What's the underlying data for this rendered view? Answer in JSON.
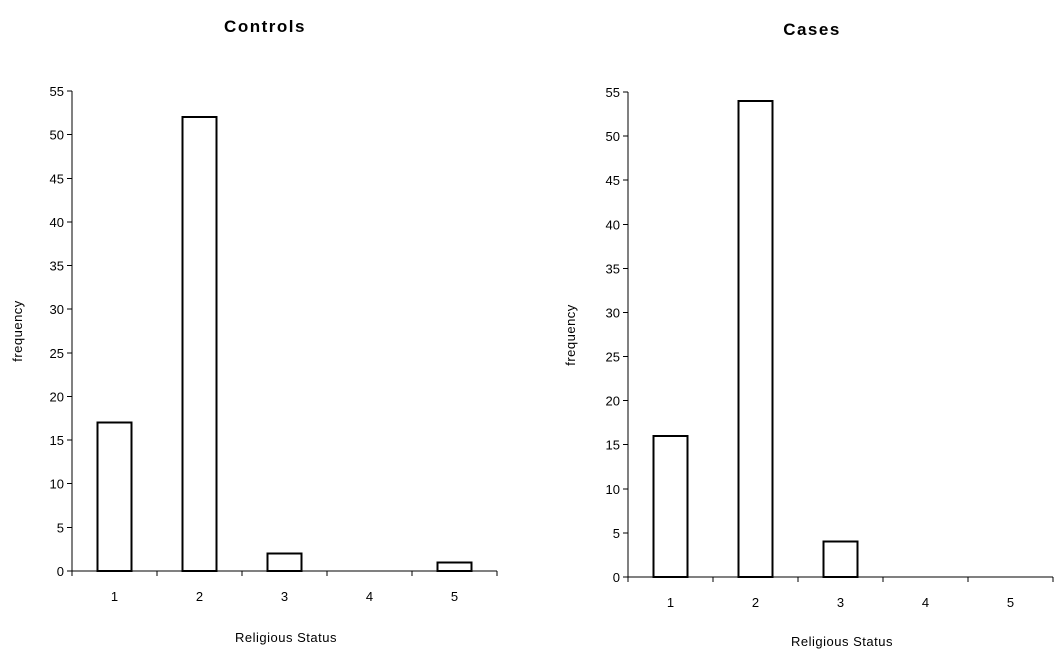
{
  "chart_data": [
    {
      "type": "bar",
      "title": "Controls",
      "xlabel": "Religious Status",
      "ylabel": "frequency",
      "categories": [
        "1",
        "2",
        "3",
        "4",
        "5"
      ],
      "values": [
        17,
        52,
        2,
        0,
        1
      ],
      "ylim": [
        0,
        55
      ],
      "yticks": [
        "0",
        "5",
        "10",
        "15",
        "20",
        "25",
        "30",
        "35",
        "40",
        "45",
        "50",
        "55"
      ],
      "grid": false,
      "legend": "none"
    },
    {
      "type": "bar",
      "title": "Cases",
      "xlabel": "Religious Status",
      "ylabel": "frequency",
      "categories": [
        "1",
        "2",
        "3",
        "4",
        "5"
      ],
      "values": [
        16,
        54,
        4,
        0,
        0
      ],
      "ylim": [
        0,
        55
      ],
      "yticks": [
        "0",
        "5",
        "10",
        "15",
        "20",
        "25",
        "30",
        "35",
        "40",
        "45",
        "50",
        "55"
      ],
      "grid": false,
      "legend": "none"
    }
  ]
}
